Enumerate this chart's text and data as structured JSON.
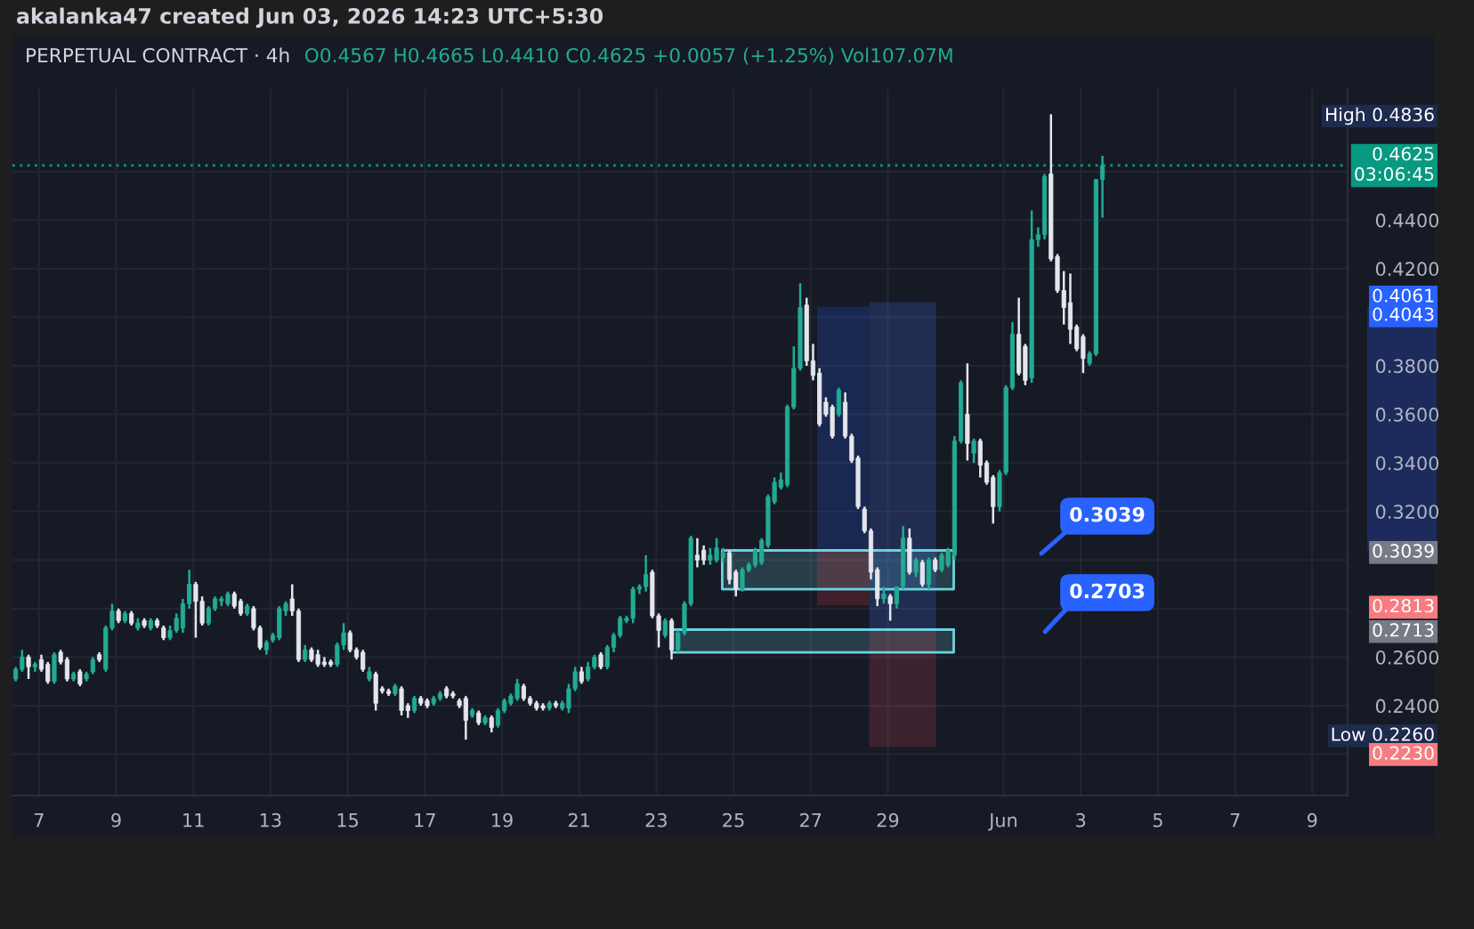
{
  "chart_data": {
    "type": "candlestick",
    "title": "akalanka47 created Jun 03, 2026 14:23 UTC+5:30",
    "subtitle": "PERPETUAL CONTRACT · 4h",
    "annotations": [
      "O0.4567 H0.4665 L0.4410 C0.4625 +0.0057 (+1.25%) Vol107.07M",
      "0.3039",
      "0.2703"
    ],
    "x": [
      "2026-05-06T09:30",
      "2026-05-06T13:30",
      "2026-05-06T17:30",
      "2026-05-06T21:30",
      "2026-05-07T01:30",
      "2026-05-07T05:30",
      "2026-05-07T09:30",
      "2026-05-07T13:30",
      "2026-05-07T17:30",
      "2026-05-07T21:30",
      "2026-05-08T01:30",
      "2026-05-08T05:30",
      "2026-05-08T09:30",
      "2026-05-08T13:30",
      "2026-05-08T17:30",
      "2026-05-08T21:30",
      "2026-05-09T01:30",
      "2026-05-09T05:30",
      "2026-05-09T09:30",
      "2026-05-09T13:30",
      "2026-05-09T17:30",
      "2026-05-09T21:30",
      "2026-05-10T01:30",
      "2026-05-10T05:30",
      "2026-05-10T09:30",
      "2026-05-10T13:30",
      "2026-05-10T17:30",
      "2026-05-10T21:30",
      "2026-05-11T01:30",
      "2026-05-11T05:30",
      "2026-05-11T09:30",
      "2026-05-11T13:30",
      "2026-05-11T17:30",
      "2026-05-11T21:30",
      "2026-05-12T01:30",
      "2026-05-12T05:30",
      "2026-05-12T09:30",
      "2026-05-12T13:30",
      "2026-05-12T17:30",
      "2026-05-12T21:30",
      "2026-05-13T01:30",
      "2026-05-13T05:30",
      "2026-05-13T09:30",
      "2026-05-13T13:30",
      "2026-05-13T17:30",
      "2026-05-13T21:30",
      "2026-05-14T01:30",
      "2026-05-14T05:30",
      "2026-05-14T09:30",
      "2026-05-14T13:30",
      "2026-05-14T17:30",
      "2026-05-14T21:30",
      "2026-05-15T01:30",
      "2026-05-15T05:30",
      "2026-05-15T09:30",
      "2026-05-15T13:30",
      "2026-05-15T17:30",
      "2026-05-15T21:30",
      "2026-05-16T01:30",
      "2026-05-16T05:30",
      "2026-05-16T09:30",
      "2026-05-16T13:30",
      "2026-05-16T17:30",
      "2026-05-16T21:30",
      "2026-05-17T01:30",
      "2026-05-17T05:30",
      "2026-05-17T09:30",
      "2026-05-17T13:30",
      "2026-05-17T17:30",
      "2026-05-17T21:30",
      "2026-05-18T01:30",
      "2026-05-18T05:30",
      "2026-05-18T09:30",
      "2026-05-18T13:30",
      "2026-05-18T17:30",
      "2026-05-18T21:30",
      "2026-05-19T01:30",
      "2026-05-19T05:30",
      "2026-05-19T09:30",
      "2026-05-19T13:30",
      "2026-05-19T17:30",
      "2026-05-19T21:30",
      "2026-05-20T01:30",
      "2026-05-20T05:30",
      "2026-05-20T09:30",
      "2026-05-20T13:30",
      "2026-05-20T17:30",
      "2026-05-20T21:30",
      "2026-05-21T01:30",
      "2026-05-21T05:30",
      "2026-05-21T09:30",
      "2026-05-21T13:30",
      "2026-05-21T17:30",
      "2026-05-21T21:30",
      "2026-05-22T01:30",
      "2026-05-22T05:30",
      "2026-05-22T09:30",
      "2026-05-22T13:30",
      "2026-05-22T17:30",
      "2026-05-22T21:30",
      "2026-05-23T01:30",
      "2026-05-23T05:30",
      "2026-05-23T09:30",
      "2026-05-23T13:30",
      "2026-05-23T17:30",
      "2026-05-23T21:30",
      "2026-05-24T01:30",
      "2026-05-24T05:30",
      "2026-05-24T09:30",
      "2026-05-24T13:30",
      "2026-05-24T17:30",
      "2026-05-24T21:30",
      "2026-05-25T01:30",
      "2026-05-25T05:30",
      "2026-05-25T09:30",
      "2026-05-25T13:30",
      "2026-05-25T17:30",
      "2026-05-25T21:30",
      "2026-05-26T01:30",
      "2026-05-26T05:30",
      "2026-05-26T09:30",
      "2026-05-26T13:30",
      "2026-05-26T17:30",
      "2026-05-26T21:30",
      "2026-05-27T01:30",
      "2026-05-27T05:30",
      "2026-05-27T09:30",
      "2026-05-27T13:30",
      "2026-05-27T17:30",
      "2026-05-27T21:30",
      "2026-05-28T01:30",
      "2026-05-28T05:30",
      "2026-05-28T09:30",
      "2026-05-28T13:30",
      "2026-05-28T17:30",
      "2026-05-28T21:30",
      "2026-05-29T01:30",
      "2026-05-29T05:30",
      "2026-05-29T09:30",
      "2026-05-29T13:30",
      "2026-05-29T17:30",
      "2026-05-29T21:30",
      "2026-05-30T01:30",
      "2026-05-30T05:30",
      "2026-05-30T09:30",
      "2026-05-30T13:30",
      "2026-05-30T17:30",
      "2026-05-30T21:30",
      "2026-05-31T01:30",
      "2026-05-31T05:30",
      "2026-05-31T09:30",
      "2026-05-31T13:30",
      "2026-05-31T17:30",
      "2026-05-31T21:30",
      "2026-06-01T01:30",
      "2026-06-01T05:30",
      "2026-06-01T09:30",
      "2026-06-01T13:30",
      "2026-06-01T17:30",
      "2026-06-01T21:30",
      "2026-06-02T01:30",
      "2026-06-02T05:30",
      "2026-06-02T09:30",
      "2026-06-02T13:30",
      "2026-06-02T17:30",
      "2026-06-02T21:30",
      "2026-06-03T01:30",
      "2026-06-03T05:30",
      "2026-06-03T09:30",
      "2026-06-03T13:30"
    ],
    "ohlc": [
      [
        0.251,
        0.256,
        0.25,
        0.255
      ],
      [
        0.255,
        0.263,
        0.254,
        0.26
      ],
      [
        0.26,
        0.261,
        0.251,
        0.256
      ],
      [
        0.256,
        0.258,
        0.254,
        0.257
      ],
      [
        0.259,
        0.261,
        0.254,
        0.255
      ],
      [
        0.257,
        0.258,
        0.249,
        0.25
      ],
      [
        0.25,
        0.262,
        0.249,
        0.261
      ],
      [
        0.262,
        0.263,
        0.257,
        0.258
      ],
      [
        0.259,
        0.26,
        0.25,
        0.251
      ],
      [
        0.251,
        0.254,
        0.25,
        0.253
      ],
      [
        0.254,
        0.255,
        0.248,
        0.249
      ],
      [
        0.251,
        0.254,
        0.25,
        0.253
      ],
      [
        0.254,
        0.26,
        0.253,
        0.259
      ],
      [
        0.261,
        0.262,
        0.258,
        0.259
      ],
      [
        0.255,
        0.273,
        0.254,
        0.272
      ],
      [
        0.272,
        0.282,
        0.271,
        0.279
      ],
      [
        0.279,
        0.28,
        0.274,
        0.275
      ],
      [
        0.275,
        0.279,
        0.274,
        0.278
      ],
      [
        0.278,
        0.279,
        0.273,
        0.274
      ],
      [
        0.272,
        0.276,
        0.271,
        0.274
      ],
      [
        0.275,
        0.276,
        0.272,
        0.273
      ],
      [
        0.272,
        0.276,
        0.271,
        0.275
      ],
      [
        0.275,
        0.276,
        0.272,
        0.273
      ],
      [
        0.272,
        0.273,
        0.267,
        0.268
      ],
      [
        0.268,
        0.273,
        0.267,
        0.271
      ],
      [
        0.271,
        0.278,
        0.27,
        0.276
      ],
      [
        0.272,
        0.284,
        0.27,
        0.282
      ],
      [
        0.282,
        0.296,
        0.28,
        0.29
      ],
      [
        0.29,
        0.291,
        0.268,
        0.283
      ],
      [
        0.283,
        0.285,
        0.273,
        0.274
      ],
      [
        0.274,
        0.281,
        0.273,
        0.28
      ],
      [
        0.28,
        0.285,
        0.279,
        0.284
      ],
      [
        0.283,
        0.285,
        0.281,
        0.284
      ],
      [
        0.282,
        0.287,
        0.281,
        0.286
      ],
      [
        0.286,
        0.287,
        0.28,
        0.281
      ],
      [
        0.283,
        0.284,
        0.277,
        0.278
      ],
      [
        0.278,
        0.282,
        0.277,
        0.281
      ],
      [
        0.28,
        0.281,
        0.271,
        0.272
      ],
      [
        0.272,
        0.273,
        0.263,
        0.264
      ],
      [
        0.263,
        0.267,
        0.261,
        0.266
      ],
      [
        0.267,
        0.27,
        0.266,
        0.269
      ],
      [
        0.268,
        0.281,
        0.267,
        0.28
      ],
      [
        0.279,
        0.283,
        0.277,
        0.282
      ],
      [
        0.284,
        0.29,
        0.277,
        0.279
      ],
      [
        0.279,
        0.28,
        0.258,
        0.259
      ],
      [
        0.259,
        0.265,
        0.258,
        0.263
      ],
      [
        0.263,
        0.264,
        0.258,
        0.259
      ],
      [
        0.261,
        0.263,
        0.256,
        0.257
      ],
      [
        0.258,
        0.26,
        0.256,
        0.257
      ],
      [
        0.258,
        0.259,
        0.256,
        0.257
      ],
      [
        0.257,
        0.266,
        0.256,
        0.265
      ],
      [
        0.265,
        0.274,
        0.263,
        0.27
      ],
      [
        0.27,
        0.271,
        0.262,
        0.263
      ],
      [
        0.263,
        0.264,
        0.259,
        0.26
      ],
      [
        0.262,
        0.263,
        0.254,
        0.255
      ],
      [
        0.251,
        0.256,
        0.25,
        0.254
      ],
      [
        0.253,
        0.254,
        0.238,
        0.241
      ],
      [
        0.247,
        0.248,
        0.245,
        0.246
      ],
      [
        0.246,
        0.247,
        0.244,
        0.245
      ],
      [
        0.245,
        0.249,
        0.244,
        0.248
      ],
      [
        0.247,
        0.248,
        0.236,
        0.238
      ],
      [
        0.24,
        0.241,
        0.235,
        0.238
      ],
      [
        0.238,
        0.244,
        0.237,
        0.243
      ],
      [
        0.243,
        0.244,
        0.24,
        0.241
      ],
      [
        0.242,
        0.243,
        0.239,
        0.24
      ],
      [
        0.241,
        0.244,
        0.24,
        0.243
      ],
      [
        0.243,
        0.246,
        0.242,
        0.245
      ],
      [
        0.247,
        0.248,
        0.243,
        0.244
      ],
      [
        0.245,
        0.246,
        0.243,
        0.244
      ],
      [
        0.242,
        0.243,
        0.239,
        0.24
      ],
      [
        0.243,
        0.244,
        0.226,
        0.234
      ],
      [
        0.236,
        0.239,
        0.235,
        0.238
      ],
      [
        0.237,
        0.238,
        0.232,
        0.233
      ],
      [
        0.233,
        0.236,
        0.232,
        0.235
      ],
      [
        0.235,
        0.236,
        0.229,
        0.231
      ],
      [
        0.232,
        0.239,
        0.231,
        0.238
      ],
      [
        0.238,
        0.243,
        0.237,
        0.242
      ],
      [
        0.241,
        0.245,
        0.24,
        0.244
      ],
      [
        0.243,
        0.251,
        0.242,
        0.249
      ],
      [
        0.248,
        0.249,
        0.242,
        0.243
      ],
      [
        0.243,
        0.244,
        0.24,
        0.241
      ],
      [
        0.241,
        0.242,
        0.238,
        0.239
      ],
      [
        0.24,
        0.241,
        0.238,
        0.239
      ],
      [
        0.239,
        0.242,
        0.238,
        0.241
      ],
      [
        0.241,
        0.242,
        0.239,
        0.24
      ],
      [
        0.239,
        0.242,
        0.238,
        0.241
      ],
      [
        0.239,
        0.249,
        0.237,
        0.247
      ],
      [
        0.247,
        0.256,
        0.246,
        0.254
      ],
      [
        0.254,
        0.256,
        0.249,
        0.25
      ],
      [
        0.251,
        0.258,
        0.25,
        0.256
      ],
      [
        0.256,
        0.261,
        0.255,
        0.26
      ],
      [
        0.261,
        0.262,
        0.255,
        0.256
      ],
      [
        0.256,
        0.265,
        0.255,
        0.264
      ],
      [
        0.264,
        0.27,
        0.262,
        0.269
      ],
      [
        0.269,
        0.277,
        0.268,
        0.276
      ],
      [
        0.275,
        0.277,
        0.274,
        0.276
      ],
      [
        0.276,
        0.289,
        0.274,
        0.288
      ],
      [
        0.288,
        0.29,
        0.286,
        0.289
      ],
      [
        0.289,
        0.302,
        0.287,
        0.294
      ],
      [
        0.295,
        0.296,
        0.276,
        0.277
      ],
      [
        0.277,
        0.278,
        0.264,
        0.271
      ],
      [
        0.269,
        0.276,
        0.268,
        0.275
      ],
      [
        0.275,
        0.276,
        0.259,
        0.263
      ],
      [
        0.263,
        0.271,
        0.262,
        0.27
      ],
      [
        0.27,
        0.283,
        0.269,
        0.282
      ],
      [
        0.282,
        0.31,
        0.281,
        0.309
      ],
      [
        0.302,
        0.309,
        0.297,
        0.3
      ],
      [
        0.304,
        0.306,
        0.298,
        0.3
      ],
      [
        0.3,
        0.305,
        0.298,
        0.302
      ],
      [
        0.3,
        0.309,
        0.299,
        0.305
      ],
      [
        0.301,
        0.305,
        0.299,
        0.303
      ],
      [
        0.303,
        0.304,
        0.29,
        0.292
      ],
      [
        0.295,
        0.296,
        0.285,
        0.288
      ],
      [
        0.288,
        0.297,
        0.287,
        0.296
      ],
      [
        0.296,
        0.299,
        0.295,
        0.298
      ],
      [
        0.298,
        0.305,
        0.297,
        0.304
      ],
      [
        0.299,
        0.309,
        0.298,
        0.308
      ],
      [
        0.306,
        0.327,
        0.305,
        0.326
      ],
      [
        0.324,
        0.334,
        0.323,
        0.332
      ],
      [
        0.33,
        0.336,
        0.329,
        0.333
      ],
      [
        0.331,
        0.364,
        0.33,
        0.363
      ],
      [
        0.363,
        0.388,
        0.362,
        0.379
      ],
      [
        0.379,
        0.414,
        0.378,
        0.404
      ],
      [
        0.405,
        0.408,
        0.38,
        0.382
      ],
      [
        0.382,
        0.389,
        0.374,
        0.376
      ],
      [
        0.377,
        0.379,
        0.355,
        0.356
      ],
      [
        0.365,
        0.367,
        0.359,
        0.36
      ],
      [
        0.363,
        0.364,
        0.35,
        0.351
      ],
      [
        0.36,
        0.371,
        0.359,
        0.37
      ],
      [
        0.365,
        0.369,
        0.35,
        0.351
      ],
      [
        0.351,
        0.352,
        0.34,
        0.341
      ],
      [
        0.342,
        0.343,
        0.321,
        0.322
      ],
      [
        0.321,
        0.322,
        0.311,
        0.312
      ],
      [
        0.312,
        0.313,
        0.292,
        0.295
      ],
      [
        0.296,
        0.297,
        0.281,
        0.284
      ],
      [
        0.284,
        0.289,
        0.282,
        0.286
      ],
      [
        0.285,
        0.286,
        0.275,
        0.282
      ],
      [
        0.282,
        0.289,
        0.28,
        0.289
      ],
      [
        0.289,
        0.314,
        0.288,
        0.309
      ],
      [
        0.309,
        0.313,
        0.294,
        0.295
      ],
      [
        0.295,
        0.301,
        0.293,
        0.3
      ],
      [
        0.299,
        0.3,
        0.289,
        0.29
      ],
      [
        0.29,
        0.301,
        0.288,
        0.3
      ],
      [
        0.3,
        0.301,
        0.295,
        0.296
      ],
      [
        0.296,
        0.303,
        0.295,
        0.302
      ],
      [
        0.298,
        0.305,
        0.297,
        0.304
      ],
      [
        0.302,
        0.351,
        0.3,
        0.349
      ],
      [
        0.349,
        0.374,
        0.348,
        0.373
      ],
      [
        0.36,
        0.381,
        0.341,
        0.348
      ],
      [
        0.344,
        0.35,
        0.34,
        0.349
      ],
      [
        0.349,
        0.35,
        0.334,
        0.339
      ],
      [
        0.34,
        0.341,
        0.331,
        0.332
      ],
      [
        0.334,
        0.335,
        0.315,
        0.322
      ],
      [
        0.322,
        0.337,
        0.32,
        0.336
      ],
      [
        0.336,
        0.372,
        0.335,
        0.371
      ],
      [
        0.371,
        0.398,
        0.37,
        0.393
      ],
      [
        0.393,
        0.408,
        0.376,
        0.377
      ],
      [
        0.388,
        0.389,
        0.372,
        0.374
      ],
      [
        0.375,
        0.444,
        0.373,
        0.432
      ],
      [
        0.432,
        0.437,
        0.429,
        0.434
      ],
      [
        0.434,
        0.459,
        0.432,
        0.458
      ],
      [
        0.459,
        0.4836,
        0.423,
        0.424
      ],
      [
        0.425,
        0.426,
        0.41,
        0.411
      ],
      [
        0.411,
        0.419,
        0.397,
        0.404
      ],
      [
        0.406,
        0.418,
        0.389,
        0.395
      ],
      [
        0.396,
        0.397,
        0.386,
        0.387
      ],
      [
        0.392,
        0.393,
        0.377,
        0.383
      ],
      [
        0.381,
        0.386,
        0.38,
        0.385
      ],
      [
        0.385,
        0.457,
        0.384,
        0.4567
      ],
      [
        0.4567,
        0.4665,
        0.441,
        0.4625
      ]
    ],
    "series": [
      {
        "type": "line",
        "x": [
          "2026-05-24T17:00",
          "2026-05-30T17:00"
        ],
        "values": [
          0.3039,
          0.3039
        ],
        "lower": [
          0.288,
          0.288
        ],
        "upper": [
          0.3039,
          0.3039
        ],
        "color": "#6cd4e0"
      },
      {
        "type": "line",
        "x": [
          "2026-05-23T09:30",
          "2026-05-30T17:00"
        ],
        "values": [
          0.2713,
          0.2713
        ],
        "lower": [
          0.262,
          0.262
        ],
        "upper": [
          0.2713,
          0.2713
        ],
        "color": "#6cd4e0"
      },
      {
        "type": "line",
        "x": [
          "2026-05-27T04:00",
          "2026-05-28T12:30"
        ],
        "values": [
          null,
          null
        ],
        "lower": [
          0.3039,
          0.3039
        ],
        "upper": [
          0.4043,
          0.4043
        ],
        "color": "#2962ff"
      },
      {
        "type": "line",
        "x": [
          "2026-05-27T04:00",
          "2026-05-28T12:30"
        ],
        "values": [
          null,
          null
        ],
        "lower": [
          0.2813,
          0.2813
        ],
        "upper": [
          0.3039,
          0.3039
        ],
        "color": "#f23645"
      },
      {
        "type": "line",
        "x": [
          "2026-05-28T12:30",
          "2026-05-30T06:00"
        ],
        "values": [
          null,
          null
        ],
        "lower": [
          0.2713,
          0.2713
        ],
        "upper": [
          0.4061,
          0.4061
        ],
        "color": "#4a7dff"
      },
      {
        "type": "line",
        "x": [
          "2026-05-28T12:30",
          "2026-05-30T06:00"
        ],
        "values": [
          null,
          null
        ],
        "lower": [
          0.223,
          0.223
        ],
        "upper": [
          0.2713,
          0.2713
        ],
        "color": "#d94a5a"
      }
    ],
    "xlim": [
      "2026-05-06T07:30",
      "2026-06-09T22:00"
    ],
    "xticks": [
      {
        "value": "2026-05-07",
        "label": "7"
      },
      {
        "value": "2026-05-09",
        "label": "9"
      },
      {
        "value": "2026-05-11",
        "label": "11"
      },
      {
        "value": "2026-05-13",
        "label": "13"
      },
      {
        "value": "2026-05-15",
        "label": "15"
      },
      {
        "value": "2026-05-17",
        "label": "17"
      },
      {
        "value": "2026-05-19",
        "label": "19"
      },
      {
        "value": "2026-05-21",
        "label": "21"
      },
      {
        "value": "2026-05-23",
        "label": "23"
      },
      {
        "value": "2026-05-25",
        "label": "25"
      },
      {
        "value": "2026-05-27",
        "label": "27"
      },
      {
        "value": "2026-05-29",
        "label": "29"
      },
      {
        "value": "2026-06-01",
        "label": "Jun"
      },
      {
        "value": "2026-06-03",
        "label": "3"
      },
      {
        "value": "2026-06-05",
        "label": "5"
      },
      {
        "value": "2026-06-07",
        "label": "7"
      },
      {
        "value": "2026-06-09",
        "label": "9"
      }
    ],
    "ylim": [
      0.203,
      0.494
    ],
    "yticks": [
      {
        "value": 0.22,
        "label": null
      },
      {
        "value": 0.24,
        "label": "0.2400"
      },
      {
        "value": 0.26,
        "label": "0.2600"
      },
      {
        "value": 0.28,
        "label": null
      },
      {
        "value": 0.3,
        "label": null
      },
      {
        "value": 0.32,
        "label": "0.3200"
      },
      {
        "value": 0.34,
        "label": "0.3400"
      },
      {
        "value": 0.36,
        "label": "0.3600"
      },
      {
        "value": 0.38,
        "label": "0.3800"
      },
      {
        "value": 0.4,
        "label": null
      },
      {
        "value": 0.42,
        "label": "0.4200"
      },
      {
        "value": 0.44,
        "label": "0.4400"
      },
      {
        "value": 0.46,
        "label": null
      }
    ],
    "y2lim": [
      0.203,
      0.494
    ],
    "y2ticks": [
      {
        "value": 0.4836,
        "label": "High 0.4836"
      },
      0.4061,
      0.4043,
      0.3039,
      0.2813,
      0.2713,
      {
        "value": 0.226,
        "label": "Low 0.2260"
      },
      {
        "value": 0.223,
        "label": "0.2230"
      }
    ],
    "grid": true,
    "ref_lines": [
      {
        "axis": "y",
        "value": 0.4625,
        "label": "0.4625\n03:06:45",
        "color": "#089981",
        "line_style": "dotted"
      }
    ]
  }
}
